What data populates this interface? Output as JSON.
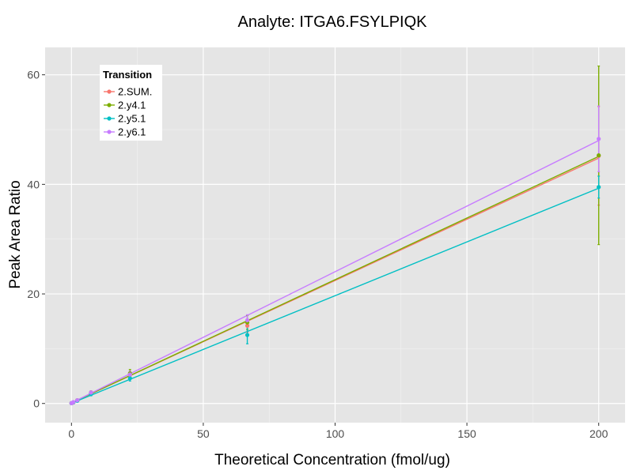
{
  "chart_data": {
    "type": "line",
    "title": "Analyte: ITGA6.FSYLPIQK",
    "xlabel": "Theoretical Concentration (fmol/ug)",
    "ylabel": "Peak Area Ratio",
    "xlim": [
      -10,
      210
    ],
    "ylim": [
      -3.5,
      65
    ],
    "xticks": [
      0,
      50,
      100,
      150,
      200
    ],
    "yticks": [
      0,
      20,
      40,
      60
    ],
    "grid": true,
    "legend": {
      "title": "Transition",
      "placement": "top-left"
    },
    "series": [
      {
        "name": "2.SUM.",
        "color": "#F8766D",
        "points": [
          {
            "x": 0,
            "y": 0.05,
            "err": 0.1
          },
          {
            "x": 0.25,
            "y": 0.1,
            "err": 0.1
          },
          {
            "x": 0.74,
            "y": 0.2,
            "err": 0.1
          },
          {
            "x": 2.2,
            "y": 0.55,
            "err": 0.15
          },
          {
            "x": 7.4,
            "y": 1.9,
            "err": 0.3
          },
          {
            "x": 22.2,
            "y": 5.2,
            "err": 0.6
          },
          {
            "x": 66.7,
            "y": 14.2,
            "err": 1.2
          },
          {
            "x": 200,
            "y": 45.2,
            "err": 9.0
          }
        ],
        "fit": [
          [
            0,
            0.1
          ],
          [
            200,
            44.8
          ]
        ]
      },
      {
        "name": "2.y4.1",
        "color": "#7CAE00",
        "points": [
          {
            "x": 0,
            "y": 0.05,
            "err": 0.1
          },
          {
            "x": 0.25,
            "y": 0.1,
            "err": 0.1
          },
          {
            "x": 0.74,
            "y": 0.2,
            "err": 0.1
          },
          {
            "x": 2.2,
            "y": 0.6,
            "err": 0.15
          },
          {
            "x": 7.4,
            "y": 2.0,
            "err": 0.3
          },
          {
            "x": 22.2,
            "y": 5.5,
            "err": 0.7
          },
          {
            "x": 66.7,
            "y": 14.8,
            "err": 1.3
          },
          {
            "x": 200,
            "y": 45.3,
            "err": 16.3
          }
        ],
        "fit": [
          [
            0,
            0.1
          ],
          [
            200,
            45.1
          ]
        ]
      },
      {
        "name": "2.y5.1",
        "color": "#00BFC4",
        "points": [
          {
            "x": 0,
            "y": 0.05,
            "err": 0.1
          },
          {
            "x": 0.25,
            "y": 0.1,
            "err": 0.1
          },
          {
            "x": 0.74,
            "y": 0.2,
            "err": 0.1
          },
          {
            "x": 2.2,
            "y": 0.5,
            "err": 0.15
          },
          {
            "x": 7.4,
            "y": 1.7,
            "err": 0.3
          },
          {
            "x": 22.2,
            "y": 4.6,
            "err": 0.5
          },
          {
            "x": 66.7,
            "y": 12.5,
            "err": 1.6
          },
          {
            "x": 200,
            "y": 39.5,
            "err": 2.0
          }
        ],
        "fit": [
          [
            0,
            0.05
          ],
          [
            200,
            39.3
          ]
        ]
      },
      {
        "name": "2.y6.1",
        "color": "#C77CFF",
        "points": [
          {
            "x": 0,
            "y": 0.05,
            "err": 0.1
          },
          {
            "x": 0.25,
            "y": 0.1,
            "err": 0.1
          },
          {
            "x": 0.74,
            "y": 0.25,
            "err": 0.1
          },
          {
            "x": 2.2,
            "y": 0.6,
            "err": 0.15
          },
          {
            "x": 7.4,
            "y": 2.0,
            "err": 0.3
          },
          {
            "x": 22.2,
            "y": 5.3,
            "err": 0.6
          },
          {
            "x": 66.7,
            "y": 15.2,
            "err": 1.0
          },
          {
            "x": 200,
            "y": 48.3,
            "err": 6.0
          }
        ],
        "fit": [
          [
            0,
            0.1
          ],
          [
            200,
            48.0
          ]
        ]
      }
    ]
  }
}
